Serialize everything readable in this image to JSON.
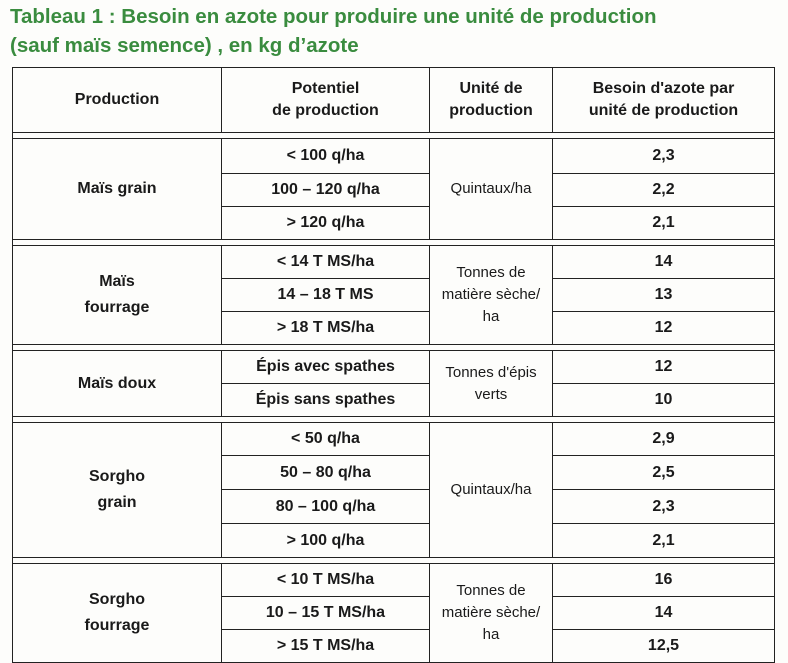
{
  "title": {
    "line1": "Tableau 1 : Besoin en azote pour produire une unité de production",
    "line2": "(sauf maïs semence) , en kg d’azote"
  },
  "headers": {
    "production": "Production",
    "potentiel_l1": "Potentiel",
    "potentiel_l2": "de production",
    "unite_l1": "Unité de",
    "unite_l2": "production",
    "besoin_l1": "Besoin d'azote par",
    "besoin_l2": "unité de production"
  },
  "groups": [
    {
      "production_lines": [
        "Maïs grain"
      ],
      "unit_lines": [
        "Quintaux/ha"
      ],
      "rows": [
        {
          "potentiel": "< 100 q/ha",
          "besoin": "2,3"
        },
        {
          "potentiel": "100 – 120 q/ha",
          "besoin": "2,2"
        },
        {
          "potentiel": "> 120 q/ha",
          "besoin": "2,1"
        }
      ]
    },
    {
      "production_lines": [
        "Maïs",
        "fourrage"
      ],
      "unit_lines": [
        "Tonnes de",
        "matière sèche/",
        "ha"
      ],
      "rows": [
        {
          "potentiel": "< 14 T MS/ha",
          "besoin": "14"
        },
        {
          "potentiel": "14 – 18 T MS",
          "besoin": "13"
        },
        {
          "potentiel": "> 18 T MS/ha",
          "besoin": "12"
        }
      ]
    },
    {
      "production_lines": [
        "Maïs doux"
      ],
      "unit_lines": [
        "Tonnes d'épis",
        "verts"
      ],
      "rows": [
        {
          "potentiel": "Épis avec spathes",
          "besoin": "12"
        },
        {
          "potentiel": "Épis sans spathes",
          "besoin": "10"
        }
      ]
    },
    {
      "production_lines": [
        "Sorgho",
        "grain"
      ],
      "unit_lines": [
        "Quintaux/ha"
      ],
      "rows": [
        {
          "potentiel": "< 50 q/ha",
          "besoin": "2,9"
        },
        {
          "potentiel": "50 – 80 q/ha",
          "besoin": "2,5"
        },
        {
          "potentiel": "80 – 100 q/ha",
          "besoin": "2,3"
        },
        {
          "potentiel": "> 100 q/ha",
          "besoin": "2,1"
        }
      ]
    },
    {
      "production_lines": [
        "Sorgho",
        "fourrage"
      ],
      "unit_lines": [
        "Tonnes de",
        "matière sèche/",
        "ha"
      ],
      "rows": [
        {
          "potentiel": "< 10 T MS/ha",
          "besoin": "16"
        },
        {
          "potentiel": "10 – 15 T MS/ha",
          "besoin": "14"
        },
        {
          "potentiel": "> 15 T MS/ha",
          "besoin": "12,5"
        }
      ]
    }
  ]
}
